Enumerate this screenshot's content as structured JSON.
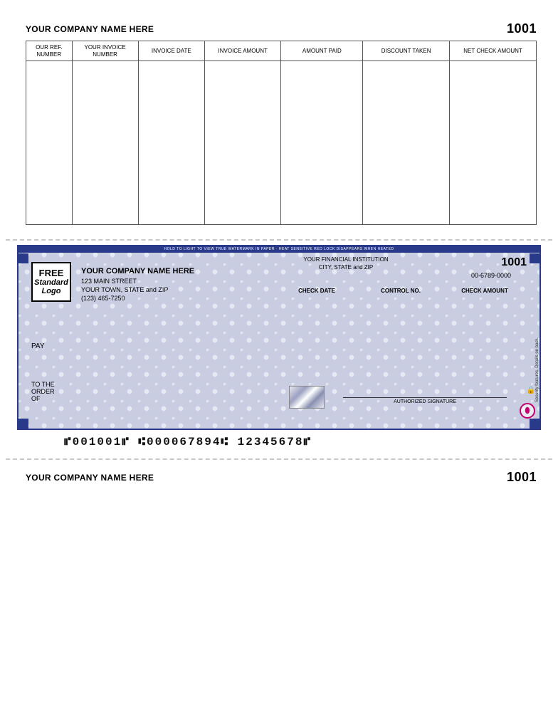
{
  "check_number": "1001",
  "stub_top": {
    "company_name": "YOUR COMPANY NAME HERE",
    "columns": [
      "OUR REF.\nNUMBER",
      "YOUR INVOICE\nNUMBER",
      "INVOICE DATE",
      "INVOICE AMOUNT",
      "AMOUNT PAID",
      "DISCOUNT TAKEN",
      "NET CHECK AMOUNT"
    ],
    "col_widths_pct": [
      9,
      13,
      13,
      15,
      16,
      17,
      17
    ]
  },
  "check": {
    "security_band": "HOLD TO LIGHT TO VIEW TRUE WATERMARK IN PAPER · HEAT SENSITIVE RED LOCK DISAPPEARS WHEN HEATED",
    "logo": {
      "line1": "FREE",
      "line2": "Standard",
      "line3": "Logo"
    },
    "company": {
      "name": "YOUR COMPANY NAME HERE",
      "addr1": "123 MAIN STREET",
      "addr2": "YOUR TOWN, STATE and ZIP",
      "phone": "(123) 465-7250"
    },
    "bank": {
      "name": "YOUR FINANCIAL INSTITUTION",
      "city": "CITY, STATE and ZIP"
    },
    "routing_frac": "00-6789-0000",
    "labels": {
      "date": "CHECK DATE",
      "control": "CONTROL NO.",
      "amount": "CHECK AMOUNT"
    },
    "pay": "PAY",
    "order": "TO THE\nORDER\nOF",
    "signature": "AUTHORIZED SIGNATURE",
    "side_text": "Security features. Details on back.",
    "micr": "⑈001001⑈  ⑆000067894⑆  12345678⑈",
    "colors": {
      "border": "#2a3a8a",
      "bg": "#c8cde2",
      "security_icon": "#c4006a"
    }
  },
  "stub_bottom": {
    "company_name": "YOUR COMPANY NAME HERE"
  }
}
